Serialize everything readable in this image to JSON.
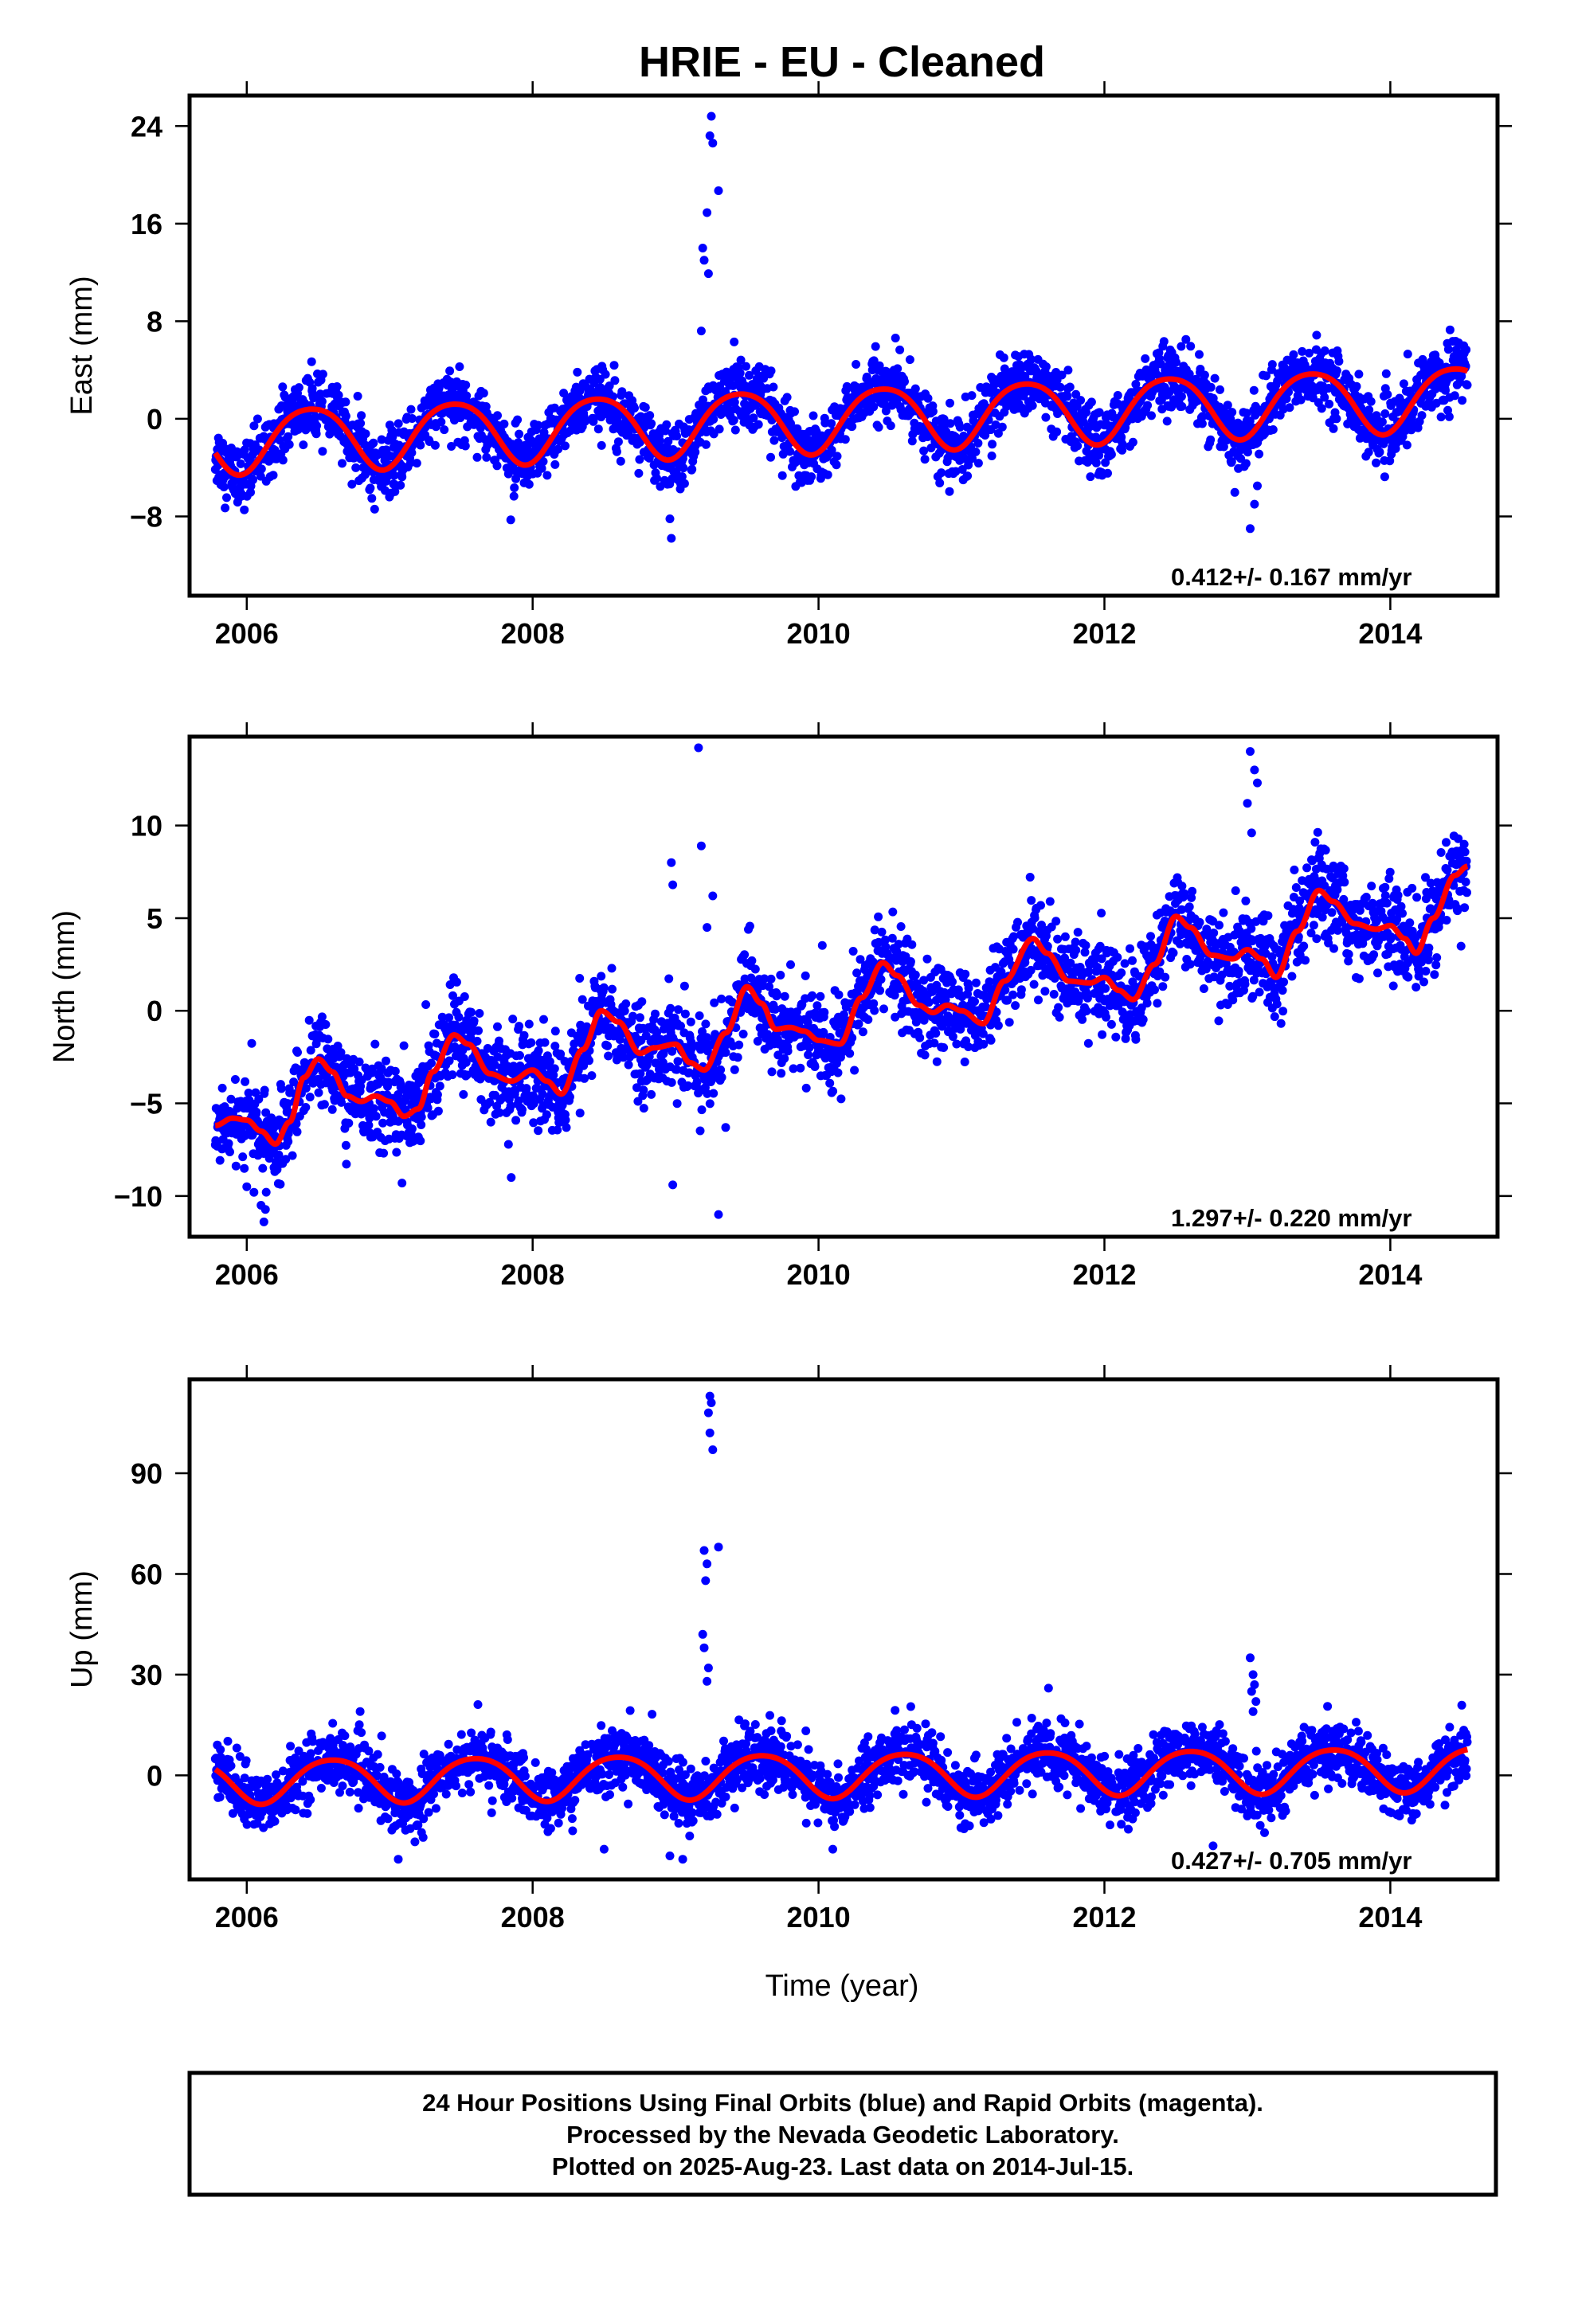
{
  "title": "HRIE  - EU - Cleaned",
  "footer": {
    "line1": "24 Hour Positions Using Final Orbits (blue) and Rapid Orbits (magenta).",
    "line2": "Processed by the Nevada Geodetic Laboratory.",
    "line3": "Plotted on 2025-Aug-23. Last data on 2014-Jul-15."
  },
  "colors": {
    "points": "#0000ff",
    "fit": "#ff0000",
    "frame": "#000000"
  },
  "chart_data": [
    {
      "type": "scatter",
      "ylabel": "East (mm)",
      "xlabel": "",
      "xlim": [
        2005.6,
        2014.75
      ],
      "ylim": [
        -14.5,
        26.5
      ],
      "x_ticks": [
        2006,
        2008,
        2010,
        2012,
        2014
      ],
      "y_ticks": [
        -8,
        0,
        8,
        16,
        24
      ],
      "y_tick_labels": [
        "−8",
        "0",
        "8",
        "16",
        "24"
      ],
      "rate_text": "0.412+/- 0.167 mm/yr",
      "data_start": 2005.78,
      "data_end": 2014.54,
      "fit": {
        "offset_at_2010": 0.0,
        "trend": 0.412,
        "annual_amp": 2.6,
        "annual_peak": 2010.45,
        "semiannual_amp": 0.35,
        "semiannual_peak": 2010.2
      },
      "scatter_sd": 1.3,
      "outliers": [
        [
          2009.25,
          24.8
        ],
        [
          2009.24,
          23.2
        ],
        [
          2009.26,
          22.6
        ],
        [
          2009.3,
          18.7
        ],
        [
          2009.22,
          16.9
        ],
        [
          2009.19,
          14.0
        ],
        [
          2009.2,
          13.0
        ],
        [
          2009.23,
          11.9
        ],
        [
          2008.97,
          -9.8
        ],
        [
          2008.96,
          -8.2
        ],
        [
          2013.02,
          -9.0
        ],
        [
          2013.05,
          -7.0
        ],
        [
          2013.07,
          -5.5
        ],
        [
          2009.18,
          7.2
        ],
        [
          2009.41,
          6.3
        ]
      ],
      "series": [
        {
          "name": "",
          "values": []
        }
      ]
    },
    {
      "type": "scatter",
      "ylabel": "North (mm)",
      "xlabel": "",
      "xlim": [
        2005.6,
        2014.75
      ],
      "ylim": [
        -12.2,
        14.8
      ],
      "x_ticks": [
        2006,
        2008,
        2010,
        2012,
        2014
      ],
      "y_ticks": [
        -10,
        -5,
        0,
        5,
        10
      ],
      "y_tick_labels": [
        "−10",
        "−5",
        "0",
        "5",
        "10"
      ],
      "rate_text": "1.297+/- 0.220 mm/yr",
      "data_start": 2005.78,
      "data_end": 2014.54,
      "fit_points": [
        [
          2005.78,
          -6.2
        ],
        [
          2005.9,
          -5.8
        ],
        [
          2006.0,
          -5.9
        ],
        [
          2006.1,
          -6.5
        ],
        [
          2006.2,
          -7.2
        ],
        [
          2006.3,
          -6.0
        ],
        [
          2006.4,
          -3.6
        ],
        [
          2006.5,
          -2.6
        ],
        [
          2006.6,
          -3.3
        ],
        [
          2006.7,
          -4.6
        ],
        [
          2006.8,
          -4.9
        ],
        [
          2006.9,
          -4.6
        ],
        [
          2007.0,
          -4.9
        ],
        [
          2007.1,
          -5.7
        ],
        [
          2007.2,
          -5.3
        ],
        [
          2007.3,
          -3.3
        ],
        [
          2007.45,
          -1.3
        ],
        [
          2007.55,
          -1.8
        ],
        [
          2007.7,
          -3.4
        ],
        [
          2007.85,
          -3.8
        ],
        [
          2008.0,
          -3.2
        ],
        [
          2008.1,
          -3.8
        ],
        [
          2008.2,
          -4.5
        ],
        [
          2008.35,
          -2.1
        ],
        [
          2008.48,
          0.0
        ],
        [
          2008.6,
          -0.6
        ],
        [
          2008.75,
          -2.3
        ],
        [
          2008.85,
          -2.0
        ],
        [
          2009.0,
          -1.8
        ],
        [
          2009.1,
          -2.8
        ],
        [
          2009.2,
          -3.2
        ],
        [
          2009.35,
          -1.2
        ],
        [
          2009.5,
          1.3
        ],
        [
          2009.6,
          0.4
        ],
        [
          2009.7,
          -1.0
        ],
        [
          2009.8,
          -0.9
        ],
        [
          2009.9,
          -1.1
        ],
        [
          2010.0,
          -1.6
        ],
        [
          2010.15,
          -1.8
        ],
        [
          2010.3,
          0.7
        ],
        [
          2010.45,
          2.6
        ],
        [
          2010.55,
          1.9
        ],
        [
          2010.7,
          0.3
        ],
        [
          2010.8,
          -0.1
        ],
        [
          2010.9,
          0.3
        ],
        [
          2011.0,
          0.0
        ],
        [
          2011.15,
          -0.7
        ],
        [
          2011.3,
          1.6
        ],
        [
          2011.5,
          3.9
        ],
        [
          2011.6,
          3.1
        ],
        [
          2011.75,
          1.6
        ],
        [
          2011.9,
          1.5
        ],
        [
          2012.0,
          1.8
        ],
        [
          2012.1,
          1.1
        ],
        [
          2012.2,
          0.6
        ],
        [
          2012.35,
          2.5
        ],
        [
          2012.5,
          5.1
        ],
        [
          2012.6,
          4.5
        ],
        [
          2012.75,
          3.0
        ],
        [
          2012.9,
          2.8
        ],
        [
          2013.0,
          3.3
        ],
        [
          2013.1,
          2.8
        ],
        [
          2013.2,
          1.8
        ],
        [
          2013.35,
          4.3
        ],
        [
          2013.5,
          6.5
        ],
        [
          2013.6,
          5.9
        ],
        [
          2013.75,
          4.7
        ],
        [
          2013.9,
          4.4
        ],
        [
          2014.0,
          4.6
        ],
        [
          2014.1,
          3.9
        ],
        [
          2014.18,
          3.1
        ],
        [
          2014.3,
          5.0
        ],
        [
          2014.45,
          7.3
        ],
        [
          2014.54,
          7.8
        ]
      ],
      "scatter_sd": 1.2,
      "outliers": [
        [
          2009.16,
          14.2
        ],
        [
          2013.02,
          14.0
        ],
        [
          2013.05,
          13.0
        ],
        [
          2013.07,
          12.3
        ],
        [
          2013.0,
          11.2
        ],
        [
          2013.03,
          9.6
        ],
        [
          2009.18,
          8.9
        ],
        [
          2008.97,
          8.0
        ],
        [
          2008.98,
          6.8
        ],
        [
          2009.26,
          6.2
        ],
        [
          2009.22,
          4.5
        ],
        [
          2006.0,
          -9.5
        ],
        [
          2006.05,
          -9.8
        ],
        [
          2006.1,
          -10.5
        ],
        [
          2006.12,
          -11.4
        ],
        [
          2008.98,
          -9.4
        ],
        [
          2009.3,
          -11.0
        ],
        [
          2007.85,
          -9.0
        ],
        [
          2009.35,
          -6.3
        ]
      ],
      "series": [
        {
          "name": "",
          "values": []
        }
      ]
    },
    {
      "type": "scatter",
      "ylabel": "Up (mm)",
      "xlabel": "Time (year)",
      "xlim": [
        2005.6,
        2014.75
      ],
      "ylim": [
        -31,
        118
      ],
      "x_ticks": [
        2006,
        2008,
        2010,
        2012,
        2014
      ],
      "y_ticks": [
        0,
        30,
        60,
        90
      ],
      "y_tick_labels": [
        "0",
        "30",
        "60",
        "90"
      ],
      "rate_text": "0.427+/- 0.705 mm/yr",
      "data_start": 2005.78,
      "data_end": 2014.54,
      "fit": {
        "offset_at_2010": 0.3,
        "trend": 0.427,
        "annual_amp": 6.5,
        "annual_peak": 2010.6,
        "semiannual_amp": 0.8,
        "semiannual_peak": 2010.35
      },
      "scatter_sd": 4.5,
      "outliers": [
        [
          2009.24,
          113
        ],
        [
          2009.25,
          111
        ],
        [
          2009.23,
          108
        ],
        [
          2009.24,
          102
        ],
        [
          2009.26,
          97
        ],
        [
          2009.3,
          68
        ],
        [
          2009.2,
          67
        ],
        [
          2009.22,
          63
        ],
        [
          2009.21,
          58
        ],
        [
          2009.19,
          42
        ],
        [
          2009.2,
          38
        ],
        [
          2009.23,
          32
        ],
        [
          2009.22,
          28
        ],
        [
          2013.02,
          35
        ],
        [
          2013.04,
          30
        ],
        [
          2013.05,
          27
        ],
        [
          2013.03,
          25
        ],
        [
          2013.06,
          22
        ],
        [
          2013.04,
          19
        ],
        [
          2008.96,
          -24
        ],
        [
          2009.05,
          -25
        ],
        [
          2007.06,
          -25
        ],
        [
          2012.76,
          -21
        ],
        [
          2010.1,
          -22
        ],
        [
          2008.5,
          -22
        ]
      ],
      "series": [
        {
          "name": "",
          "values": []
        }
      ]
    }
  ]
}
